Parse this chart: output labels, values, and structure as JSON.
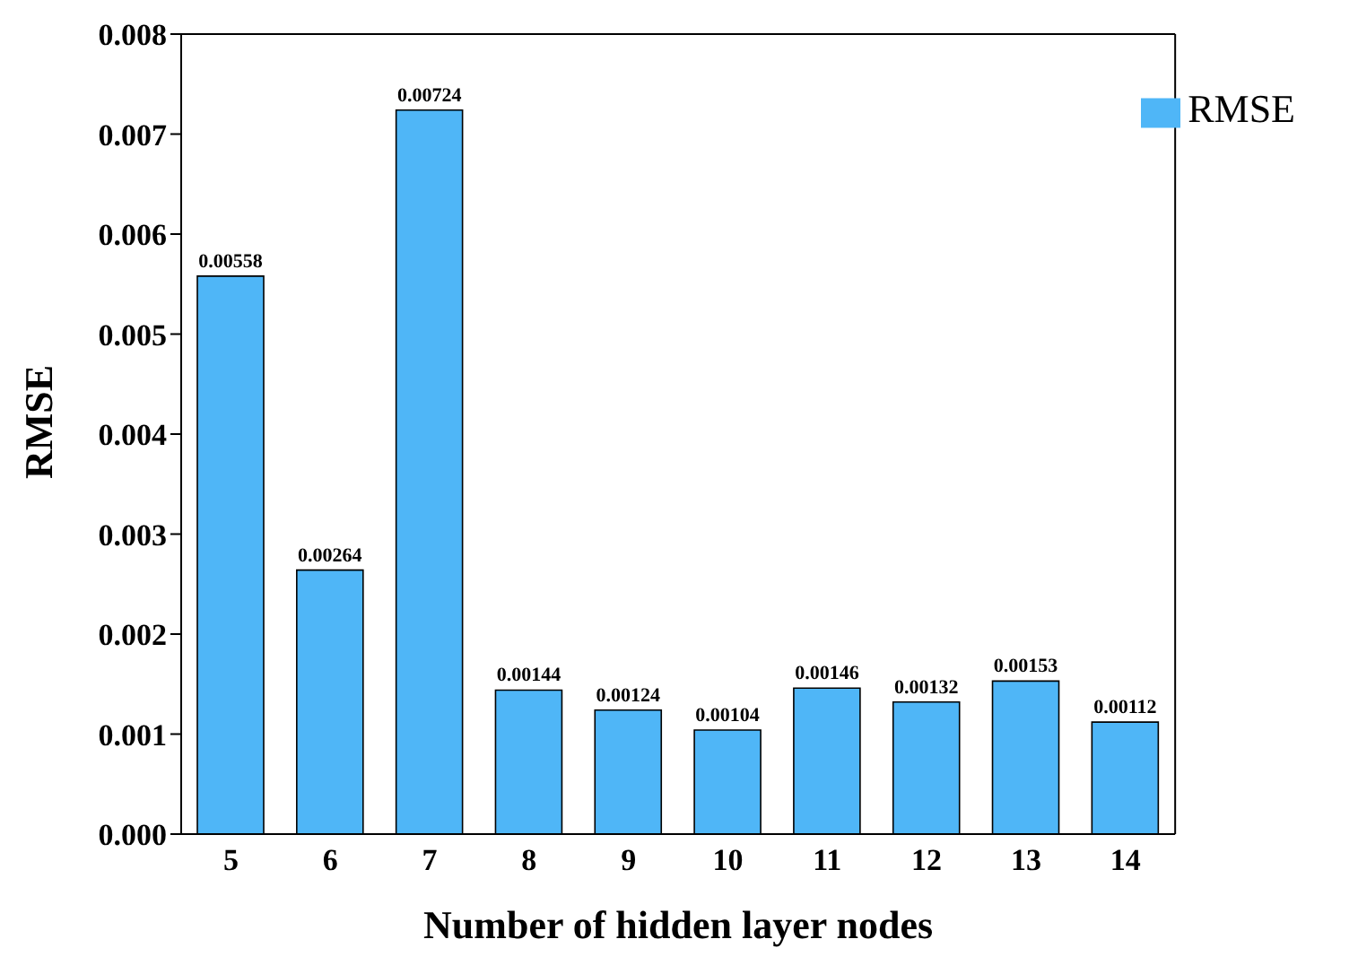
{
  "chart_data": {
    "type": "bar",
    "xlabel": "Number of hidden layer nodes",
    "ylabel": "RMSE",
    "categories": [
      "5",
      "6",
      "7",
      "8",
      "9",
      "10",
      "11",
      "12",
      "13",
      "14"
    ],
    "series": [
      {
        "name": "RMSE",
        "color": "#4fb6f7",
        "values": [
          0.00558,
          0.00264,
          0.00724,
          0.00144,
          0.00124,
          0.00104,
          0.00146,
          0.00132,
          0.00153,
          0.00112
        ]
      }
    ],
    "ylim": [
      0,
      0.008
    ],
    "yticks": [
      {
        "value": 0,
        "label": "0.000"
      },
      0.001,
      0.002,
      0.003,
      0.004,
      0.005,
      0.006,
      0.007,
      0.008
    ],
    "data_labels": true,
    "legend": "top right",
    "grid": false
  }
}
